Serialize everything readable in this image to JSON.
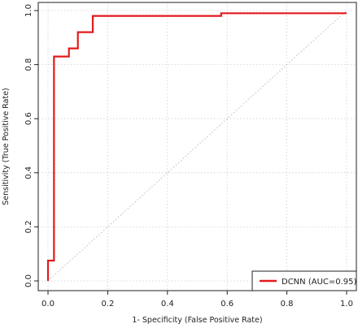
{
  "chart_data": {
    "type": "line",
    "title": "",
    "xlabel": "1- Specificity  (False Positive Rate)",
    "ylabel": "Sensitivity  (True Positive Rate)",
    "xlim": [
      0,
      1
    ],
    "ylim": [
      0,
      1
    ],
    "x_ticks": [
      "0.0",
      "0.2",
      "0.4",
      "0.6",
      "0.8",
      "1.0"
    ],
    "y_ticks": [
      "0.0",
      "0.2",
      "0.4",
      "0.6",
      "0.8",
      "1.0"
    ],
    "grid": true,
    "legend_position": "bottom-right",
    "series": [
      {
        "name": "DCNN  (AUC=0.95)",
        "color": "#e31a1c",
        "x": [
          0,
          0,
          0.02,
          0.02,
          0.07,
          0.07,
          0.1,
          0.1,
          0.15,
          0.15,
          0.58,
          0.58,
          1.0
        ],
        "y": [
          0,
          0.075,
          0.075,
          0.83,
          0.83,
          0.86,
          0.86,
          0.92,
          0.92,
          0.98,
          0.98,
          0.99,
          0.99
        ]
      }
    ],
    "reference_line": {
      "x": [
        0,
        1
      ],
      "y": [
        0,
        1
      ],
      "color": "#bbbbbb"
    }
  }
}
